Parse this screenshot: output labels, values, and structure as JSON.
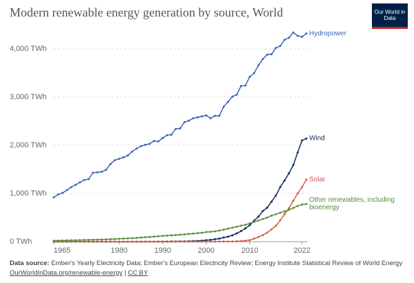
{
  "chart_data": {
    "type": "line",
    "title": "Modern renewable energy generation by source, World",
    "logo": "Our World in Data",
    "source_label": "Data source:",
    "source": "Ember's Yearly Electricity Data; Ember's European Electricity Review; Energy Institute Statistical Review of World Energy",
    "url": "OurWorldInData.org/renewable-energy",
    "license": "CC BY",
    "x": [
      1965,
      1966,
      1967,
      1968,
      1969,
      1970,
      1971,
      1972,
      1973,
      1974,
      1975,
      1976,
      1977,
      1978,
      1979,
      1980,
      1981,
      1982,
      1983,
      1984,
      1985,
      1986,
      1987,
      1988,
      1989,
      1990,
      1991,
      1992,
      1993,
      1994,
      1995,
      1996,
      1997,
      1998,
      1999,
      2000,
      2001,
      2002,
      2003,
      2004,
      2005,
      2006,
      2007,
      2008,
      2009,
      2010,
      2011,
      2012,
      2013,
      2014,
      2015,
      2016,
      2017,
      2018,
      2019,
      2020,
      2021,
      2022,
      2023
    ],
    "xlim": [
      1965,
      2023
    ],
    "xticks": [
      1965,
      1980,
      1990,
      2000,
      2010,
      2022
    ],
    "ylim": [
      0,
      4400
    ],
    "yticks": [
      {
        "value": 0,
        "label": "0 TWh"
      },
      {
        "value": 1000,
        "label": "1,000 TWh"
      },
      {
        "value": 2000,
        "label": "2,000 TWh"
      },
      {
        "value": 3000,
        "label": "3,000 TWh"
      },
      {
        "value": 4000,
        "label": "4,000 TWh"
      }
    ],
    "grid": true,
    "series": [
      {
        "name": "Hydropower",
        "color": "#3a65b4",
        "values": [
          920,
          980,
          1010,
          1070,
          1130,
          1180,
          1230,
          1280,
          1300,
          1430,
          1440,
          1450,
          1490,
          1610,
          1690,
          1720,
          1750,
          1790,
          1870,
          1930,
          1980,
          2010,
          2030,
          2090,
          2080,
          2150,
          2210,
          2220,
          2340,
          2350,
          2480,
          2510,
          2560,
          2580,
          2600,
          2620,
          2560,
          2610,
          2610,
          2800,
          2900,
          3010,
          3050,
          3230,
          3240,
          3420,
          3500,
          3660,
          3790,
          3880,
          3890,
          4020,
          4060,
          4190,
          4230,
          4340,
          4270,
          4250,
          4320
        ]
      },
      {
        "name": "Wind",
        "color": "#0b2a5a",
        "values": [
          0,
          0,
          0,
          0,
          0,
          0,
          0,
          0,
          0,
          0,
          0,
          0,
          0,
          0,
          0,
          0,
          0,
          0,
          0,
          0,
          0,
          1,
          1,
          2,
          3,
          4,
          4,
          5,
          6,
          7,
          8,
          9,
          12,
          16,
          21,
          31,
          38,
          52,
          63,
          85,
          104,
          133,
          171,
          220,
          276,
          342,
          437,
          521,
          636,
          706,
          831,
          957,
          1134,
          1270,
          1420,
          1590,
          1850,
          2100,
          2140
        ]
      },
      {
        "name": "Solar",
        "color": "#d25b47",
        "values": [
          0,
          0,
          0,
          0,
          0,
          0,
          0,
          0,
          0,
          0,
          0,
          0,
          0,
          0,
          0,
          0,
          0,
          0,
          0,
          0,
          0,
          0,
          0,
          0,
          0,
          0,
          0,
          0,
          0,
          1,
          1,
          1,
          1,
          1,
          1,
          1,
          2,
          2,
          3,
          3,
          4,
          6,
          8,
          12,
          20,
          32,
          63,
          97,
          134,
          190,
          256,
          329,
          444,
          570,
          695,
          850,
          1000,
          1130,
          1290
        ]
      },
      {
        "name": "Other renewables, including bioenergy",
        "color": "#5a8c3c",
        "values": [
          20,
          22,
          24,
          26,
          28,
          30,
          32,
          35,
          38,
          40,
          42,
          45,
          48,
          52,
          56,
          60,
          64,
          68,
          72,
          78,
          85,
          92,
          98,
          105,
          112,
          120,
          126,
          132,
          138,
          145,
          152,
          160,
          168,
          176,
          184,
          200,
          205,
          215,
          230,
          250,
          270,
          290,
          310,
          330,
          350,
          380,
          410,
          440,
          470,
          500,
          540,
          570,
          600,
          630,
          660,
          700,
          740,
          770,
          780
        ]
      }
    ]
  }
}
